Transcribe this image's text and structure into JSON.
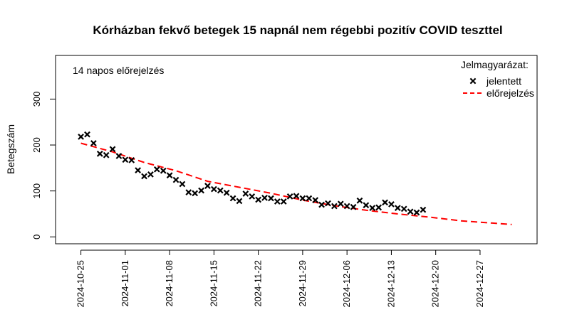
{
  "chart_data": {
    "type": "scatter",
    "title": "Kórházban fekvő betegek 15 napnál nem régebbi pozitív COVID teszttel",
    "annotation": "14 napos előrejelzés",
    "xlabel": "",
    "ylabel": "Betegszám",
    "x_type": "date",
    "xlim": [
      "2024-10-21",
      "2025-01-05"
    ],
    "ylim": [
      -15,
      395
    ],
    "y_ticks": [
      0,
      100,
      200,
      300
    ],
    "x_ticks": [
      "2024-10-25",
      "2024-11-01",
      "2024-11-08",
      "2024-11-15",
      "2024-11-22",
      "2024-11-29",
      "2024-12-06",
      "2024-12-13",
      "2024-12-20",
      "2024-12-27"
    ],
    "grid": false,
    "legend": {
      "title": "Jelmagyarázat:",
      "position": "top-right",
      "entries": [
        "jelentett",
        "előrejelzés"
      ]
    },
    "colors": {
      "reported": "#000000",
      "forecast": "#ff0000"
    },
    "series": [
      {
        "name": "jelentett",
        "style": "points-x",
        "x": [
          "2024-10-25",
          "2024-10-26",
          "2024-10-27",
          "2024-10-28",
          "2024-10-29",
          "2024-10-30",
          "2024-10-31",
          "2024-11-01",
          "2024-11-02",
          "2024-11-03",
          "2024-11-04",
          "2024-11-05",
          "2024-11-06",
          "2024-11-07",
          "2024-11-08",
          "2024-11-09",
          "2024-11-10",
          "2024-11-11",
          "2024-11-12",
          "2024-11-13",
          "2024-11-14",
          "2024-11-15",
          "2024-11-16",
          "2024-11-17",
          "2024-11-18",
          "2024-11-19",
          "2024-11-20",
          "2024-11-21",
          "2024-11-22",
          "2024-11-23",
          "2024-11-24",
          "2024-11-25",
          "2024-11-26",
          "2024-11-27",
          "2024-11-28",
          "2024-11-29",
          "2024-11-30",
          "2024-12-01",
          "2024-12-02",
          "2024-12-03",
          "2024-12-04",
          "2024-12-05",
          "2024-12-06",
          "2024-12-07",
          "2024-12-08",
          "2024-12-09",
          "2024-12-10",
          "2024-12-11",
          "2024-12-12",
          "2024-12-13",
          "2024-12-14",
          "2024-12-15",
          "2024-12-16",
          "2024-12-17",
          "2024-12-18"
        ],
        "values": [
          218,
          223,
          204,
          181,
          178,
          191,
          176,
          168,
          167,
          145,
          132,
          136,
          147,
          144,
          134,
          124,
          115,
          97,
          95,
          101,
          111,
          104,
          101,
          96,
          84,
          78,
          94,
          88,
          81,
          85,
          84,
          77,
          77,
          88,
          89,
          84,
          84,
          80,
          70,
          73,
          67,
          72,
          67,
          65,
          79,
          69,
          63,
          64,
          75,
          71,
          63,
          61,
          55,
          53,
          59
        ]
      },
      {
        "name": "előrejelzés",
        "style": "dashed-line",
        "x": [
          "2024-10-25",
          "2024-10-30",
          "2024-11-04",
          "2024-11-09",
          "2024-11-14",
          "2024-11-19",
          "2024-11-24",
          "2024-11-29",
          "2024-12-04",
          "2024-12-09",
          "2024-12-14",
          "2024-12-19",
          "2024-12-24",
          "2024-12-29",
          "2025-01-01"
        ],
        "values": [
          204,
          185,
          162,
          144,
          121,
          108,
          95,
          80,
          68,
          58,
          50,
          43,
          35,
          30,
          27
        ]
      }
    ]
  }
}
